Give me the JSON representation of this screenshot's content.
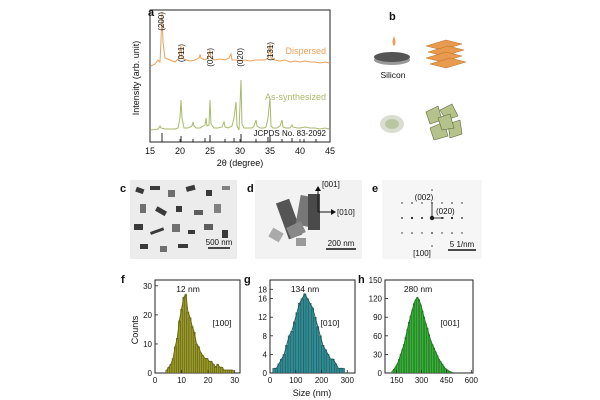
{
  "figure": {
    "panel_letters": [
      "a",
      "b",
      "c",
      "d",
      "e",
      "f",
      "g",
      "h"
    ]
  },
  "panel_a": {
    "ylabel": "Intensity (arb. unit)",
    "xlabel": "2θ (degree)",
    "xticks": [
      "15",
      "20",
      "25",
      "30",
      "35",
      "40",
      "45"
    ],
    "dispersed_label": "Dispersed",
    "synth_label": "As-synthesized",
    "ref_label": "JCPDS No. 83-2092",
    "peak_labels": [
      "(200)",
      "(011)",
      "(021)",
      "(020)",
      "(131)"
    ],
    "colors": {
      "dispersed": "#e8a25a",
      "synth": "#a7bb6b",
      "ref": "#111111"
    }
  },
  "panel_b": {
    "silicon_label": "Silicon"
  },
  "panel_c": {
    "scale_label": "500 nm"
  },
  "panel_d": {
    "zone_001": "[001]",
    "zone_010": "[010]",
    "scale_label": "200 nm"
  },
  "panel_e": {
    "spot_002": "(002)",
    "spot_020": "(020)",
    "zone": "[100]",
    "scale_label": "5 1/nm"
  },
  "chart_data": [
    {
      "type": "bar",
      "panel": "f",
      "ylabel": "Counts",
      "annotation": "12 nm",
      "zone": "[100]",
      "color": "#9a9a1e",
      "xticks": [
        "0",
        "10",
        "20",
        "30"
      ],
      "yticks": [
        "0",
        "10",
        "20",
        "30"
      ],
      "xlim": [
        0,
        32
      ],
      "ylim": [
        0,
        32
      ],
      "bin_width": 0.8,
      "x": [
        4.4,
        5.2,
        6.0,
        6.8,
        7.6,
        8.4,
        9.2,
        10.0,
        10.8,
        11.6,
        12.4,
        13.2,
        14.0,
        14.8,
        15.6,
        16.4,
        17.2,
        18.0,
        18.8,
        19.6,
        20.4,
        21.2,
        22.0,
        22.8,
        23.6,
        24.4,
        25.2,
        26.0,
        26.8,
        27.6,
        28.4,
        29.2
      ],
      "values": [
        1,
        2,
        3,
        5,
        9,
        12,
        18,
        22,
        26,
        27,
        21,
        19,
        16,
        14,
        10,
        9,
        7,
        6,
        5,
        5,
        4,
        4,
        3,
        2,
        3,
        2,
        2,
        1,
        1,
        1,
        1,
        1
      ],
      "fit_curve": true
    },
    {
      "type": "bar",
      "panel": "g",
      "xlabel": "Size (nm)",
      "annotation": "134 nm",
      "zone": "[010]",
      "color": "#2a8c94",
      "xticks": [
        "0",
        "100",
        "200",
        "300"
      ],
      "yticks": [
        "0",
        "4",
        "8",
        "12",
        "16",
        "18"
      ],
      "xlim": [
        0,
        330
      ],
      "ylim": [
        0,
        20
      ],
      "bin_width": 10,
      "x": [
        15,
        25,
        35,
        45,
        55,
        65,
        75,
        85,
        95,
        105,
        115,
        125,
        135,
        145,
        155,
        165,
        175,
        185,
        195,
        205,
        215,
        225,
        235,
        245,
        255,
        265,
        275,
        285
      ],
      "values": [
        1,
        1,
        2,
        3,
        4,
        6,
        8,
        9,
        11,
        13,
        15,
        16,
        17,
        16,
        15,
        14,
        12,
        10,
        8,
        6,
        5,
        4,
        3,
        3,
        2,
        1,
        1,
        1
      ],
      "fit_curve": true
    },
    {
      "type": "bar",
      "panel": "h",
      "annotation": "280 nm",
      "zone": "[001]",
      "color": "#2fb82f",
      "xticks": [
        "150",
        "300",
        "450",
        "600"
      ],
      "yticks": [
        "0",
        "30",
        "60",
        "90",
        "120",
        "150"
      ],
      "xlim": [
        80,
        610
      ],
      "ylim": [
        0,
        150
      ],
      "bin_width": 10,
      "x": [
        125,
        135,
        145,
        155,
        165,
        175,
        185,
        195,
        205,
        215,
        225,
        235,
        245,
        255,
        265,
        275,
        285,
        295,
        305,
        315,
        325,
        335,
        345,
        355,
        365,
        375,
        385,
        395,
        405,
        415,
        425,
        435,
        445,
        455,
        465,
        475,
        485
      ],
      "values": [
        3,
        6,
        10,
        15,
        22,
        30,
        38,
        46,
        58,
        70,
        82,
        92,
        102,
        112,
        118,
        122,
        118,
        110,
        100,
        90,
        80,
        72,
        62,
        52,
        46,
        40,
        34,
        28,
        22,
        18,
        14,
        10,
        7,
        5,
        3,
        2,
        1
      ],
      "fit_curve": true
    }
  ]
}
